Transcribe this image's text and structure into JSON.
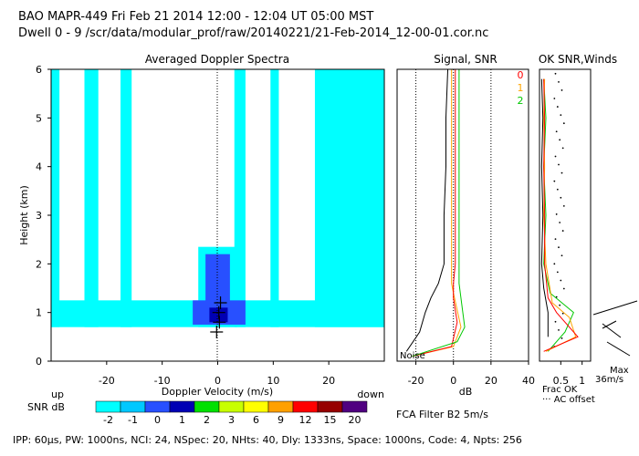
{
  "header": {
    "line1": "BAO   MAPR-449   Fri Feb 21 2014 12:00 - 12:04 UT 05:00 MST",
    "line2": "Dwell  0 - 9   /scr/data/modular_prof/raw/20140221/21-Feb-2014_12-00-01.cor.nc"
  },
  "footer": {
    "params": "IPP: 60μs,  PW: 1000ns,  NCI: 24,  NSpec: 20, NHts: 40,  Dly: 1333ns,  Space: 1000ns,  Code: 4,  Npts: 256",
    "filter": "FCA Filter B2   5m/s"
  },
  "colorbar": {
    "label": "SNR dB",
    "ticks": [
      "-2",
      "-1",
      "0",
      "1",
      "2",
      "3",
      "6",
      "9",
      "12",
      "15",
      "20"
    ],
    "colors": [
      "#00ffff",
      "#00c8ff",
      "#2850ff",
      "#0000b4",
      "#00e000",
      "#c8ff00",
      "#ffff00",
      "#ffa000",
      "#ff0000",
      "#960000",
      "#500080"
    ]
  },
  "chart_data": [
    {
      "type": "heatmap",
      "title": "Averaged Doppler Spectra",
      "xlabel": "Doppler Velocity (m/s)",
      "ylabel": "Height (km)",
      "xlim": [
        -30,
        30
      ],
      "ylim": [
        0,
        6
      ],
      "x_ticks": [
        "-20",
        "-10",
        "0",
        "10",
        "20"
      ],
      "y_ticks": [
        "0",
        "1",
        "2",
        "3",
        "4",
        "5",
        "6"
      ],
      "left_label": "up",
      "right_label": "down",
      "regions": [
        {
          "snr_min": -2,
          "x": [
            -30,
            -28.5
          ],
          "y": [
            0.7,
            6
          ]
        },
        {
          "snr_min": -2,
          "x": [
            -24,
            -21.5
          ],
          "y": [
            0.7,
            6
          ]
        },
        {
          "snr_min": -2,
          "x": [
            -17.5,
            -15.5
          ],
          "y": [
            0.7,
            6
          ]
        },
        {
          "snr_min": -2,
          "x": [
            -30,
            30
          ],
          "y": [
            0.7,
            1.25
          ]
        },
        {
          "snr_min": -2,
          "x": [
            -3.5,
            3.5
          ],
          "y": [
            0.7,
            2.35
          ]
        },
        {
          "snr_min": -2,
          "x": [
            3,
            5
          ],
          "y": [
            0.7,
            6
          ]
        },
        {
          "snr_min": -2,
          "x": [
            9.5,
            11
          ],
          "y": [
            0.7,
            6
          ]
        },
        {
          "snr_min": -2,
          "x": [
            17.5,
            30
          ],
          "y": [
            0.7,
            6
          ]
        },
        {
          "snr_min": 0,
          "x": [
            -2.2,
            2.2
          ],
          "y": [
            0.75,
            2.2
          ]
        },
        {
          "snr_min": 0,
          "x": [
            -4.5,
            5
          ],
          "y": [
            0.75,
            1.25
          ]
        },
        {
          "snr_min": 1,
          "x": [
            -1.5,
            1.8
          ],
          "y": [
            0.8,
            1.1
          ]
        },
        {
          "snr_min": 1,
          "x": [
            -1.2,
            0
          ],
          "y": [
            0.85,
            1.05
          ]
        }
      ],
      "wind_markers": [
        {
          "height": 1.2,
          "velocity": 0.5
        },
        {
          "height": 1.0,
          "velocity": 0.2
        },
        {
          "height": 0.8,
          "velocity": 0.3
        },
        {
          "height": 0.6,
          "velocity": -0.2
        }
      ]
    },
    {
      "type": "line",
      "title": "Signal, SNR",
      "xlabel": "dB",
      "xlim": [
        -30,
        40
      ],
      "ylim": [
        0,
        6
      ],
      "x_ticks": [
        "-20",
        "0",
        "20",
        "40"
      ],
      "annotation": "Noise",
      "series": [
        {
          "color": "#000000",
          "points": [
            [
              -3,
              6
            ],
            [
              -4,
              5
            ],
            [
              -4,
              4
            ],
            [
              -5,
              3
            ],
            [
              -5,
              2
            ],
            [
              -8,
              1.6
            ],
            [
              -12,
              1.3
            ],
            [
              -15,
              1.0
            ],
            [
              -18,
              0.6
            ],
            [
              -25,
              0.2
            ]
          ]
        },
        {
          "color": "#ffa500",
          "points": [
            [
              -1,
              6
            ],
            [
              -1,
              5
            ],
            [
              -1,
              4
            ],
            [
              -1,
              3
            ],
            [
              -1,
              2
            ],
            [
              -1,
              1.6
            ],
            [
              0,
              1.4
            ],
            [
              4,
              0.7
            ],
            [
              0,
              0.3
            ],
            [
              -22,
              0.1
            ]
          ]
        },
        {
          "color": "#ff0000",
          "points": [
            [
              1,
              6
            ],
            [
              1,
              5
            ],
            [
              1,
              4
            ],
            [
              1,
              3
            ],
            [
              1,
              2
            ],
            [
              0,
              1.6
            ],
            [
              0,
              1.3
            ],
            [
              2,
              0.8
            ],
            [
              -1,
              0.3
            ],
            [
              -22,
              0.1
            ]
          ]
        },
        {
          "color": "#00c800",
          "points": [
            [
              3,
              6
            ],
            [
              3,
              5
            ],
            [
              3,
              4
            ],
            [
              3,
              3
            ],
            [
              3,
              2
            ],
            [
              3,
              1.6
            ],
            [
              5,
              1.0
            ],
            [
              6,
              0.7
            ],
            [
              2,
              0.4
            ],
            [
              -22,
              0.1
            ]
          ]
        }
      ]
    },
    {
      "type": "line",
      "title": "OK SNR,Winds",
      "xlabel": "Frac OK",
      "xlim": [
        0,
        1.2
      ],
      "ylim": [
        0,
        6
      ],
      "x_ticks": [
        "0.5",
        "1"
      ],
      "legend": [
        "0",
        "1",
        "2"
      ],
      "legend_colors": [
        "#ff0000",
        "#ffa500",
        "#00c800"
      ],
      "dotted_note": "AC offset",
      "max_label": "Max",
      "max_value": "36m/s",
      "series": [
        {
          "color": "#00c800",
          "points": [
            [
              0.1,
              5.8
            ],
            [
              0.15,
              5.0
            ],
            [
              0.1,
              4.0
            ],
            [
              0.15,
              3.0
            ],
            [
              0.1,
              2.0
            ],
            [
              0.25,
              1.4
            ],
            [
              0.8,
              1.0
            ],
            [
              0.6,
              0.6
            ],
            [
              0.2,
              0.2
            ]
          ]
        },
        {
          "color": "#ffa500",
          "points": [
            [
              0.12,
              5.8
            ],
            [
              0.1,
              5.0
            ],
            [
              0.12,
              4.0
            ],
            [
              0.1,
              3.0
            ],
            [
              0.15,
              2.0
            ],
            [
              0.3,
              1.2
            ],
            [
              0.7,
              0.9
            ],
            [
              0.85,
              0.5
            ],
            [
              0.15,
              0.2
            ]
          ]
        },
        {
          "color": "#ff0000",
          "points": [
            [
              0.1,
              5.8
            ],
            [
              0.12,
              5.0
            ],
            [
              0.1,
              4.0
            ],
            [
              0.12,
              3.0
            ],
            [
              0.12,
              2.0
            ],
            [
              0.2,
              1.3
            ],
            [
              0.4,
              1.0
            ],
            [
              0.9,
              0.5
            ],
            [
              0.1,
              0.2
            ]
          ]
        },
        {
          "color": "#000000",
          "points": [
            [
              0.05,
              5.8
            ],
            [
              0.08,
              5.0
            ],
            [
              0.05,
              4.0
            ],
            [
              0.08,
              3.0
            ],
            [
              0.05,
              2.0
            ],
            [
              0.1,
              1.5
            ],
            [
              0.2,
              1.0
            ],
            [
              0.2,
              0.5
            ]
          ]
        }
      ]
    }
  ]
}
